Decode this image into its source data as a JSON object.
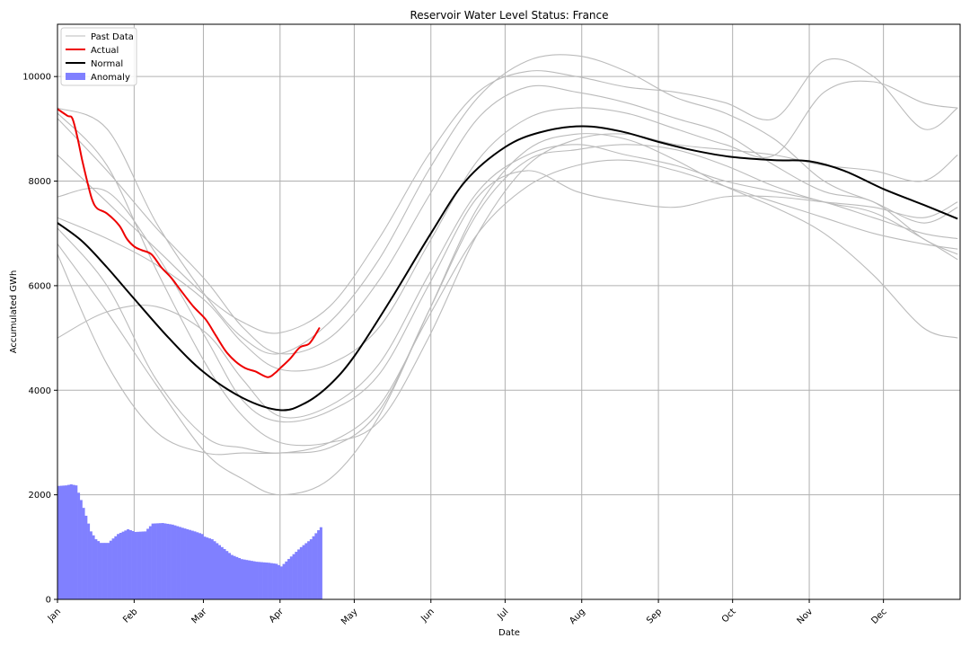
{
  "chart_data": {
    "type": "line",
    "title": "Reservoir Water Level Status: France",
    "xlabel": "Date",
    "ylabel": "Accumulated GWh",
    "xlim": [
      0,
      365
    ],
    "ylim": [
      0,
      11000
    ],
    "grid": true,
    "legend_position": "top-left",
    "legend": [
      {
        "label": "Past Data",
        "kind": "line",
        "color": "#bbbbbb"
      },
      {
        "label": "Actual",
        "kind": "line",
        "color": "#ee0000"
      },
      {
        "label": "Normal",
        "kind": "line",
        "color": "#000000"
      },
      {
        "label": "Anomaly",
        "kind": "patch",
        "color": "#8080ff"
      }
    ],
    "x_ticks": [
      {
        "day": 0,
        "label": "Jan"
      },
      {
        "day": 31,
        "label": "Feb"
      },
      {
        "day": 59,
        "label": "Mar"
      },
      {
        "day": 90,
        "label": "Apr"
      },
      {
        "day": 120,
        "label": "May"
      },
      {
        "day": 151,
        "label": "Jun"
      },
      {
        "day": 181,
        "label": "Jul"
      },
      {
        "day": 212,
        "label": "Aug"
      },
      {
        "day": 243,
        "label": "Sep"
      },
      {
        "day": 273,
        "label": "Oct"
      },
      {
        "day": 304,
        "label": "Nov"
      },
      {
        "day": 334,
        "label": "Dec"
      }
    ],
    "y_ticks": [
      {
        "value": 0,
        "label": "0"
      },
      {
        "value": 2000,
        "label": "2000"
      },
      {
        "value": 4000,
        "label": "4000"
      },
      {
        "value": 6000,
        "label": "6000"
      },
      {
        "value": 8000,
        "label": "8000"
      },
      {
        "value": 10000,
        "label": "10000"
      }
    ],
    "normal": {
      "x": [
        0,
        10,
        20,
        31,
        45,
        59,
        75,
        90,
        100,
        110,
        120,
        135,
        151,
        165,
        181,
        195,
        212,
        228,
        243,
        258,
        273,
        290,
        304,
        318,
        334,
        350,
        364
      ],
      "y": [
        7200,
        6850,
        6350,
        5750,
        5000,
        4350,
        3850,
        3620,
        3750,
        4100,
        4650,
        5750,
        7000,
        8000,
        8650,
        8930,
        9050,
        8950,
        8750,
        8580,
        8460,
        8400,
        8380,
        8200,
        7850,
        7550,
        7280
      ]
    },
    "actual": {
      "x": [
        0,
        4,
        6,
        8,
        10,
        12,
        14,
        16,
        20,
        25,
        28,
        31,
        34,
        38,
        42,
        46,
        50,
        55,
        60,
        64,
        68,
        72,
        76,
        80,
        85,
        88,
        90,
        94,
        98,
        102,
        106
      ],
      "y": [
        9380,
        9250,
        9200,
        8850,
        8400,
        8000,
        7650,
        7480,
        7380,
        7150,
        6900,
        6750,
        6680,
        6600,
        6350,
        6150,
        5900,
        5600,
        5350,
        5050,
        4750,
        4550,
        4420,
        4360,
        4250,
        4330,
        4420,
        4600,
        4820,
        4900,
        5200
      ]
    },
    "anomaly": {
      "x": [
        0,
        3,
        5,
        7,
        9,
        11,
        13,
        15,
        17,
        20,
        24,
        28,
        31,
        35,
        38,
        42,
        46,
        50,
        55,
        58,
        59,
        62,
        66,
        70,
        74,
        80,
        85,
        88,
        90,
        94,
        98,
        102,
        106
      ],
      "y": [
        2170,
        2180,
        2200,
        2180,
        1900,
        1600,
        1300,
        1150,
        1080,
        1080,
        1250,
        1340,
        1290,
        1300,
        1450,
        1460,
        1430,
        1370,
        1300,
        1250,
        1200,
        1150,
        1000,
        850,
        770,
        720,
        700,
        680,
        630,
        820,
        1000,
        1150,
        1380
      ]
    },
    "past_data": [
      {
        "x": [
          0,
          20,
          40,
          60,
          75,
          90,
          110,
          130,
          150,
          170,
          190,
          210,
          230,
          250,
          270,
          290,
          310,
          330,
          350,
          364
        ],
        "y": [
          9400,
          9000,
          7200,
          5800,
          5000,
          4700,
          5300,
          6500,
          8200,
          9600,
          10300,
          10400,
          10100,
          9600,
          9300,
          8800,
          8000,
          7600,
          7200,
          7500
        ]
      },
      {
        "x": [
          0,
          20,
          40,
          60,
          75,
          90,
          110,
          130,
          150,
          170,
          190,
          210,
          230,
          250,
          270,
          290,
          310,
          330,
          350,
          364
        ],
        "y": [
          8500,
          7600,
          6700,
          5800,
          5300,
          5100,
          5600,
          6900,
          8500,
          9700,
          10100,
          10000,
          9800,
          9700,
          9500,
          9200,
          10300,
          10000,
          9000,
          9400
        ]
      },
      {
        "x": [
          0,
          20,
          40,
          60,
          75,
          90,
          110,
          130,
          150,
          170,
          190,
          210,
          230,
          250,
          270,
          290,
          310,
          330,
          350,
          364
        ],
        "y": [
          6800,
          5500,
          4100,
          2800,
          2300,
          2000,
          2300,
          3500,
          5500,
          7500,
          8600,
          8900,
          8800,
          8400,
          7900,
          7500,
          7000,
          6200,
          5200,
          5000
        ]
      },
      {
        "x": [
          0,
          20,
          40,
          60,
          75,
          90,
          110,
          130,
          150,
          170,
          190,
          210,
          230,
          250,
          270,
          290,
          310,
          330,
          350,
          364
        ],
        "y": [
          5000,
          5500,
          5600,
          5100,
          4200,
          3500,
          3700,
          4500,
          6200,
          7800,
          8500,
          8700,
          8500,
          8300,
          8000,
          7800,
          7600,
          7300,
          7000,
          6900
        ]
      },
      {
        "x": [
          0,
          20,
          40,
          60,
          75,
          90,
          110,
          130,
          150,
          170,
          190,
          210,
          230,
          250,
          270,
          290,
          310,
          330,
          350,
          364
        ],
        "y": [
          7300,
          6900,
          6400,
          5700,
          4900,
          4400,
          4500,
          5200,
          6800,
          8400,
          9200,
          9400,
          9300,
          9000,
          8700,
          8500,
          9700,
          9900,
          9500,
          9400
        ]
      },
      {
        "x": [
          0,
          20,
          40,
          60,
          75,
          90,
          110,
          130,
          150,
          170,
          190,
          210,
          230,
          250,
          270,
          290,
          310,
          330,
          350,
          364
        ],
        "y": [
          9300,
          8300,
          6300,
          4500,
          3500,
          3000,
          3000,
          3400,
          5000,
          7000,
          8300,
          8800,
          8900,
          8700,
          8600,
          8500,
          8300,
          8200,
          8000,
          8500
        ]
      },
      {
        "x": [
          0,
          20,
          40,
          60,
          75,
          90,
          110,
          130,
          150,
          170,
          190,
          210,
          230,
          250,
          270,
          290,
          310,
          330,
          350,
          364
        ],
        "y": [
          7700,
          7800,
          6600,
          5000,
          3800,
          3400,
          3600,
          4300,
          6000,
          7700,
          8200,
          7800,
          7600,
          7500,
          7700,
          7700,
          7600,
          7500,
          7300,
          7600
        ]
      },
      {
        "x": [
          0,
          20,
          40,
          60,
          75,
          90,
          110,
          130,
          150,
          170,
          190,
          210,
          230,
          250,
          270,
          290,
          310,
          330,
          350,
          364
        ],
        "y": [
          7100,
          6000,
          4200,
          3100,
          2900,
          2800,
          3000,
          3700,
          5400,
          7000,
          7900,
          8300,
          8400,
          8200,
          7900,
          7600,
          7300,
          7000,
          6800,
          6700
        ]
      },
      {
        "x": [
          0,
          20,
          40,
          60,
          75,
          90,
          110,
          130,
          150,
          170,
          190,
          210,
          230,
          250,
          270,
          290,
          310,
          330,
          350,
          364
        ],
        "y": [
          6600,
          4500,
          3200,
          2800,
          2800,
          2800,
          2900,
          3600,
          5500,
          7400,
          8400,
          8600,
          8700,
          8600,
          8300,
          7900,
          7600,
          7400,
          6900,
          6500
        ]
      },
      {
        "x": [
          0,
          20,
          40,
          60,
          75,
          90,
          110,
          130,
          150,
          170,
          190,
          210,
          230,
          250,
          270,
          290,
          310,
          330,
          350,
          364
        ],
        "y": [
          9200,
          8200,
          7100,
          6100,
          5200,
          4700,
          5000,
          6100,
          7700,
          9200,
          9800,
          9700,
          9500,
          9200,
          8900,
          8300,
          7800,
          7600,
          6900,
          6600
        ]
      }
    ]
  }
}
